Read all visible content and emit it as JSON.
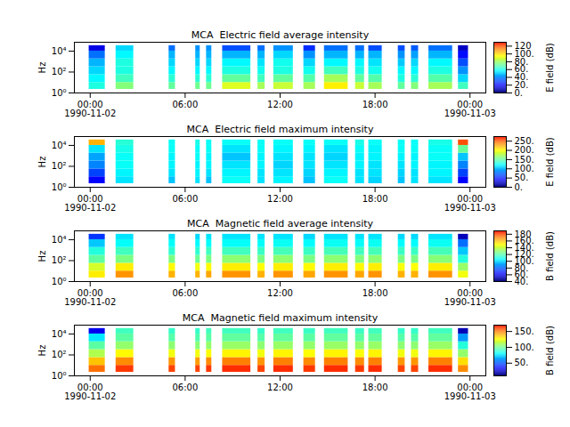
{
  "chart_data": [
    {
      "type": "heatmap",
      "title": "MCA  Electric field average intensity",
      "y_label": "Hz",
      "log": "y",
      "xlim": [
        "1990-11-01T23:00",
        "1990-11-03T01:00"
      ],
      "xticks": [
        {
          "value": "1990-11-02T00:00",
          "label": "00:00\n1990-11-02"
        },
        {
          "value": "1990-11-02T06:00",
          "label": "06:00"
        },
        {
          "value": "1990-11-02T12:00",
          "label": "12:00"
        },
        {
          "value": "1990-11-02T18:00",
          "label": "18:00"
        },
        {
          "value": "1990-11-03T00:00",
          "label": "00:00\n1990-11-03"
        }
      ],
      "ylim": [
        1,
        70000
      ],
      "yticks": [
        {
          "value": 1,
          "label": "10⁰"
        },
        {
          "value": 100,
          "label": "10²"
        },
        {
          "value": 10000,
          "label": "10⁴"
        }
      ],
      "time_bins": [
        [
          "1990-11-01T23:56",
          "1990-11-02T00:57"
        ],
        [
          "1990-11-02T01:38",
          "1990-11-02T02:45"
        ],
        [
          "1990-11-02T04:59",
          "1990-11-02T05:23"
        ],
        [
          "1990-11-02T06:40",
          "1990-11-02T06:57"
        ],
        [
          "1990-11-02T07:21",
          "1990-11-02T07:41"
        ],
        [
          "1990-11-02T08:22",
          "1990-11-02T10:09"
        ],
        [
          "1990-11-02T10:36",
          "1990-11-02T11:03"
        ],
        [
          "1990-11-02T11:36",
          "1990-11-02T12:50"
        ],
        [
          "1990-11-02T13:30",
          "1990-11-02T14:14"
        ],
        [
          "1990-11-02T14:48",
          "1990-11-02T16:18"
        ],
        [
          "1990-11-02T16:46",
          "1990-11-02T17:20"
        ],
        [
          "1990-11-02T17:36",
          "1990-11-02T18:27"
        ],
        [
          "1990-11-02T19:28",
          "1990-11-02T19:54"
        ],
        [
          "1990-11-02T20:18",
          "1990-11-02T20:45"
        ],
        [
          "1990-11-02T21:24",
          "1990-11-02T22:54"
        ],
        [
          "1990-11-02T23:16",
          "1990-11-02T23:54"
        ]
      ],
      "frequency_bins": [
        2.2,
        10,
        56,
        320,
        1800,
        10000,
        33000
      ],
      "values": [
        [
          60,
          55,
          50,
          45,
          35,
          15
        ],
        [
          75,
          65,
          60,
          60,
          55,
          50
        ],
        [
          70,
          62,
          55,
          50,
          45,
          35
        ],
        [
          72,
          62,
          55,
          50,
          45,
          40
        ],
        [
          72,
          62,
          55,
          50,
          45,
          40
        ],
        [
          88,
          70,
          60,
          55,
          45,
          30
        ],
        [
          80,
          65,
          58,
          52,
          45,
          35
        ],
        [
          85,
          70,
          60,
          58,
          50,
          40
        ],
        [
          80,
          68,
          58,
          50,
          40,
          25
        ],
        [
          95,
          80,
          65,
          55,
          45,
          35
        ],
        [
          85,
          70,
          60,
          55,
          45,
          35
        ],
        [
          80,
          68,
          58,
          52,
          45,
          30
        ],
        [
          70,
          60,
          55,
          48,
          40,
          30
        ],
        [
          75,
          62,
          55,
          50,
          42,
          32
        ],
        [
          80,
          68,
          60,
          55,
          45,
          35
        ],
        [
          65,
          50,
          40,
          30,
          20,
          10
        ]
      ],
      "colorbar_label": "E field (dB)",
      "colorbar_lim": [
        0,
        130
      ],
      "colorbar_ticks": [
        {
          "value": 0,
          "label": "0."
        },
        {
          "value": 20,
          "label": "20."
        },
        {
          "value": 40,
          "label": "40."
        },
        {
          "value": 60,
          "label": "60."
        },
        {
          "value": 80,
          "label": "80."
        },
        {
          "value": 100,
          "label": "100."
        },
        120
      ]
    },
    {
      "type": "heatmap",
      "title": "MCA  Electric field maximum intensity",
      "y_label": "Hz",
      "log": "y",
      "xlim": [
        "1990-11-01T23:00",
        "1990-11-03T01:00"
      ],
      "xticks": [
        {
          "value": "1990-11-02T00:00",
          "label": "00:00\n1990-11-02"
        },
        {
          "value": "1990-11-02T06:00",
          "label": "06:00"
        },
        {
          "value": "1990-11-02T12:00",
          "label": "12:00"
        },
        {
          "value": "1990-11-02T18:00",
          "label": "18:00"
        },
        {
          "value": "1990-11-03T00:00",
          "label": "00:00\n1990-11-03"
        }
      ],
      "ylim": [
        1,
        70000
      ],
      "yticks": [
        {
          "value": 1,
          "label": "10⁰"
        },
        {
          "value": 100,
          "label": "10²"
        },
        {
          "value": 10000,
          "label": "10⁴"
        }
      ],
      "time_bins": [
        [
          "1990-11-01T23:56",
          "1990-11-02T00:57"
        ],
        [
          "1990-11-02T01:38",
          "1990-11-02T02:45"
        ],
        [
          "1990-11-02T04:59",
          "1990-11-02T05:23"
        ],
        [
          "1990-11-02T06:40",
          "1990-11-02T06:57"
        ],
        [
          "1990-11-02T07:21",
          "1990-11-02T07:41"
        ],
        [
          "1990-11-02T08:22",
          "1990-11-02T10:09"
        ],
        [
          "1990-11-02T10:36",
          "1990-11-02T11:03"
        ],
        [
          "1990-11-02T11:36",
          "1990-11-02T12:50"
        ],
        [
          "1990-11-02T13:30",
          "1990-11-02T14:14"
        ],
        [
          "1990-11-02T14:48",
          "1990-11-02T16:18"
        ],
        [
          "1990-11-02T16:46",
          "1990-11-02T17:20"
        ],
        [
          "1990-11-02T17:36",
          "1990-11-02T18:27"
        ],
        [
          "1990-11-02T19:28",
          "1990-11-02T19:54"
        ],
        [
          "1990-11-02T20:18",
          "1990-11-02T20:45"
        ],
        [
          "1990-11-02T21:24",
          "1990-11-02T22:54"
        ],
        [
          "1990-11-02T23:16",
          "1990-11-02T23:54"
        ]
      ],
      "frequency_bins": [
        2.2,
        10,
        56,
        320,
        1800,
        10000,
        33000
      ],
      "values": [
        [
          40,
          60,
          80,
          90,
          110,
          220
        ],
        [
          110,
          115,
          120,
          120,
          125,
          130
        ],
        [
          100,
          110,
          115,
          115,
          120,
          120
        ],
        [
          110,
          115,
          115,
          120,
          120,
          125
        ],
        [
          100,
          110,
          115,
          115,
          120,
          120
        ],
        [
          120,
          115,
          110,
          100,
          110,
          120
        ],
        [
          110,
          110,
          115,
          115,
          120,
          120
        ],
        [
          115,
          110,
          105,
          110,
          115,
          120
        ],
        [
          100,
          105,
          110,
          110,
          115,
          120
        ],
        [
          120,
          115,
          110,
          105,
          110,
          120
        ],
        [
          110,
          110,
          115,
          115,
          120,
          125
        ],
        [
          105,
          110,
          110,
          115,
          115,
          120
        ],
        [
          100,
          105,
          110,
          115,
          120,
          120
        ],
        [
          110,
          110,
          115,
          115,
          120,
          120
        ],
        [
          110,
          115,
          115,
          120,
          120,
          125
        ],
        [
          40,
          60,
          80,
          100,
          150,
          250
        ]
      ],
      "colorbar_label": "E field (dB)",
      "colorbar_lim": [
        0,
        275
      ],
      "colorbar_ticks": [
        {
          "value": 0,
          "label": "0."
        },
        {
          "value": 50,
          "label": "50."
        },
        {
          "value": 100,
          "label": "100."
        },
        {
          "value": 150,
          "label": "150."
        },
        {
          "value": 200,
          "label": "200."
        },
        {
          "value": 250,
          "label": "250."
        }
      ]
    },
    {
      "type": "heatmap",
      "title": "MCA  Magnetic field average intensity",
      "y_label": "Hz",
      "log": "y",
      "xlim": [
        "1990-11-01T23:00",
        "1990-11-03T01:00"
      ],
      "xticks": [
        {
          "value": "1990-11-02T00:00",
          "label": "00:00\n1990-11-02"
        },
        {
          "value": "1990-11-02T06:00",
          "label": "06:00"
        },
        {
          "value": "1990-11-02T12:00",
          "label": "12:00"
        },
        {
          "value": "1990-11-02T18:00",
          "label": "18:00"
        },
        {
          "value": "1990-11-03T00:00",
          "label": "00:00\n1990-11-03"
        }
      ],
      "ylim": [
        1,
        70000
      ],
      "yticks": [
        {
          "value": 1,
          "label": "10⁰"
        },
        {
          "value": 100,
          "label": "10²"
        },
        {
          "value": 10000,
          "label": "10⁴"
        }
      ],
      "time_bins": [
        [
          "1990-11-01T23:56",
          "1990-11-02T00:57"
        ],
        [
          "1990-11-02T01:38",
          "1990-11-02T02:45"
        ],
        [
          "1990-11-02T04:59",
          "1990-11-02T05:23"
        ],
        [
          "1990-11-02T06:40",
          "1990-11-02T06:57"
        ],
        [
          "1990-11-02T07:21",
          "1990-11-02T07:41"
        ],
        [
          "1990-11-02T08:22",
          "1990-11-02T10:09"
        ],
        [
          "1990-11-02T10:36",
          "1990-11-02T11:03"
        ],
        [
          "1990-11-02T11:36",
          "1990-11-02T12:50"
        ],
        [
          "1990-11-02T13:30",
          "1990-11-02T14:14"
        ],
        [
          "1990-11-02T14:48",
          "1990-11-02T16:18"
        ],
        [
          "1990-11-02T16:46",
          "1990-11-02T17:20"
        ],
        [
          "1990-11-02T17:36",
          "1990-11-02T18:27"
        ],
        [
          "1990-11-02T19:28",
          "1990-11-02T19:54"
        ],
        [
          "1990-11-02T20:18",
          "1990-11-02T20:45"
        ],
        [
          "1990-11-02T21:24",
          "1990-11-02T22:54"
        ],
        [
          "1990-11-02T23:16",
          "1990-11-02T23:54"
        ]
      ],
      "frequency_bins": [
        2.2,
        10,
        56,
        320,
        1800,
        10000,
        33000
      ],
      "values": [
        [
          150,
          140,
          120,
          110,
          95,
          70
        ],
        [
          165,
          150,
          125,
          115,
          105,
          100
        ],
        [
          160,
          148,
          125,
          112,
          105,
          100
        ],
        [
          160,
          145,
          122,
          112,
          104,
          98
        ],
        [
          162,
          148,
          125,
          115,
          105,
          100
        ],
        [
          165,
          150,
          128,
          115,
          105,
          100
        ],
        [
          160,
          147,
          125,
          114,
          105,
          100
        ],
        [
          165,
          150,
          128,
          116,
          106,
          100
        ],
        [
          162,
          148,
          125,
          114,
          104,
          98
        ],
        [
          165,
          150,
          128,
          116,
          106,
          100
        ],
        [
          162,
          148,
          126,
          115,
          105,
          100
        ],
        [
          165,
          150,
          128,
          116,
          106,
          100
        ],
        [
          160,
          146,
          125,
          114,
          104,
          98
        ],
        [
          160,
          147,
          125,
          114,
          104,
          98
        ],
        [
          165,
          150,
          127,
          116,
          106,
          100
        ],
        [
          145,
          130,
          110,
          95,
          80,
          50
        ]
      ],
      "colorbar_label": "B field (dB)",
      "colorbar_lim": [
        40,
        190
      ],
      "colorbar_ticks": [
        {
          "value": 40,
          "label": "40."
        },
        {
          "value": 60,
          "label": "60."
        },
        {
          "value": 80,
          "label": "80."
        },
        {
          "value": 100,
          "label": "100."
        },
        {
          "value": 120,
          "label": "120."
        },
        {
          "value": 140,
          "label": "140."
        },
        {
          "value": 160,
          "label": "160."
        },
        180
      ]
    },
    {
      "type": "heatmap",
      "title": "MCA  Magnetic field maximum intensity",
      "y_label": "Hz",
      "log": "y",
      "xlim": [
        "1990-11-01T23:00",
        "1990-11-03T01:00"
      ],
      "xticks": [
        {
          "value": "1990-11-02T00:00",
          "label": "00:00\n1990-11-02"
        },
        {
          "value": "1990-11-02T06:00",
          "label": "06:00"
        },
        {
          "value": "1990-11-02T12:00",
          "label": "12:00"
        },
        {
          "value": "1990-11-02T18:00",
          "label": "18:00"
        },
        {
          "value": "1990-11-03T00:00",
          "label": "00:00\n1990-11-03"
        }
      ],
      "ylim": [
        1,
        70000
      ],
      "yticks": [
        {
          "value": 1,
          "label": "10⁰"
        },
        {
          "value": 100,
          "label": "10²"
        },
        {
          "value": 10000,
          "label": "10⁴"
        }
      ],
      "time_bins": [
        [
          "1990-11-01T23:56",
          "1990-11-02T00:57"
        ],
        [
          "1990-11-02T01:38",
          "1990-11-02T02:45"
        ],
        [
          "1990-11-02T04:59",
          "1990-11-02T05:23"
        ],
        [
          "1990-11-02T06:40",
          "1990-11-02T06:57"
        ],
        [
          "1990-11-02T07:21",
          "1990-11-02T07:41"
        ],
        [
          "1990-11-02T08:22",
          "1990-11-02T10:09"
        ],
        [
          "1990-11-02T10:36",
          "1990-11-02T11:03"
        ],
        [
          "1990-11-02T11:36",
          "1990-11-02T12:50"
        ],
        [
          "1990-11-02T13:30",
          "1990-11-02T14:14"
        ],
        [
          "1990-11-02T14:48",
          "1990-11-02T16:18"
        ],
        [
          "1990-11-02T16:46",
          "1990-11-02T17:20"
        ],
        [
          "1990-11-02T17:36",
          "1990-11-02T18:27"
        ],
        [
          "1990-11-02T19:28",
          "1990-11-02T19:54"
        ],
        [
          "1990-11-02T20:18",
          "1990-11-02T20:45"
        ],
        [
          "1990-11-02T21:24",
          "1990-11-02T22:54"
        ],
        [
          "1990-11-02T23:16",
          "1990-11-02T23:54"
        ]
      ],
      "frequency_bins": [
        2.2,
        10,
        56,
        320,
        1800,
        10000,
        33000
      ],
      "values": [
        [
          150,
          135,
          110,
          95,
          75,
          30
        ],
        [
          160,
          145,
          125,
          105,
          95,
          90
        ],
        [
          158,
          143,
          122,
          104,
          94,
          88
        ],
        [
          158,
          142,
          122,
          103,
          93,
          88
        ],
        [
          160,
          145,
          124,
          105,
          95,
          90
        ],
        [
          162,
          147,
          126,
          106,
          96,
          90
        ],
        [
          158,
          143,
          122,
          104,
          94,
          88
        ],
        [
          162,
          147,
          126,
          106,
          96,
          90
        ],
        [
          160,
          145,
          124,
          105,
          95,
          89
        ],
        [
          162,
          147,
          126,
          106,
          96,
          90
        ],
        [
          160,
          145,
          124,
          105,
          95,
          89
        ],
        [
          162,
          147,
          126,
          106,
          96,
          90
        ],
        [
          158,
          143,
          122,
          104,
          94,
          88
        ],
        [
          158,
          143,
          122,
          104,
          94,
          88
        ],
        [
          162,
          147,
          126,
          106,
          96,
          90
        ],
        [
          145,
          130,
          105,
          85,
          60,
          20
        ]
      ],
      "colorbar_label": "B field (dB)",
      "colorbar_lim": [
        10,
        170
      ],
      "colorbar_ticks": [
        {
          "value": 50,
          "label": "50."
        },
        {
          "value": 100,
          "label": "100."
        },
        {
          "value": 150,
          "label": "150."
        }
      ]
    }
  ]
}
